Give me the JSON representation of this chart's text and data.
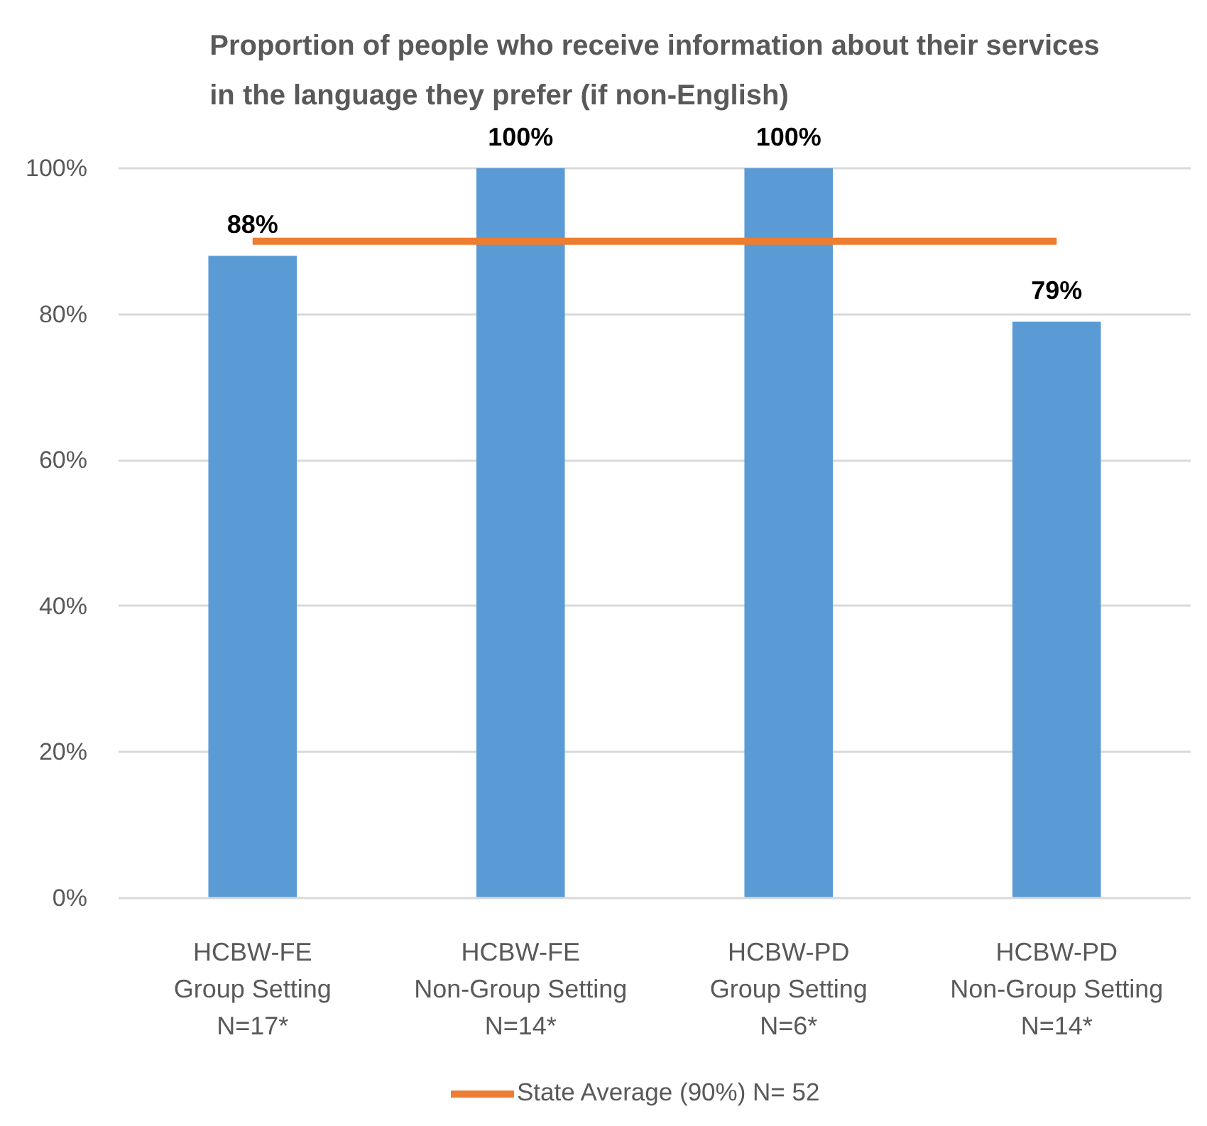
{
  "chart_data": {
    "type": "bar",
    "title": "Proportion of people who receive information about their services\nin the language they prefer (if non-English)",
    "categories": [
      "HCBW-FE\nGroup Setting\nN=17*",
      "HCBW-FE\nNon-Group Setting\nN=14*",
      "HCBW-PD\nGroup Setting\nN=6*",
      "HCBW-PD\nNon-Group Setting\nN=14*"
    ],
    "series": [
      {
        "color": "#5b9bd5",
        "values": [
          88,
          100,
          100,
          79
        ],
        "value_labels": [
          "88%",
          "100%",
          "100%",
          "79%"
        ]
      },
      {
        "type": "line",
        "name": "State Average (90%) N= 52",
        "color": "#ed7d31",
        "values": [
          90,
          90,
          90,
          90
        ]
      }
    ],
    "ylim": [
      0,
      100
    ],
    "yticks": [
      {
        "value": 0,
        "label": "0%"
      },
      {
        "value": 20,
        "label": "20%"
      },
      {
        "value": 40,
        "label": "40%"
      },
      {
        "value": 60,
        "label": "60%"
      },
      {
        "value": 80,
        "label": "80%"
      },
      {
        "value": 100,
        "label": "100%"
      }
    ],
    "grid": "y",
    "legend": "bottom"
  }
}
